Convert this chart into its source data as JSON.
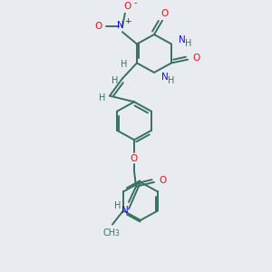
{
  "background_color": "#e8ecf0",
  "bond_color": "#3a7060",
  "bond_width": 1.4,
  "atom_colors": {
    "O": "#ee1111",
    "N": "#1111ee",
    "H": "#3a7060",
    "C": "#3a7060"
  },
  "figsize": [
    3.0,
    3.0
  ],
  "dpi": 100
}
